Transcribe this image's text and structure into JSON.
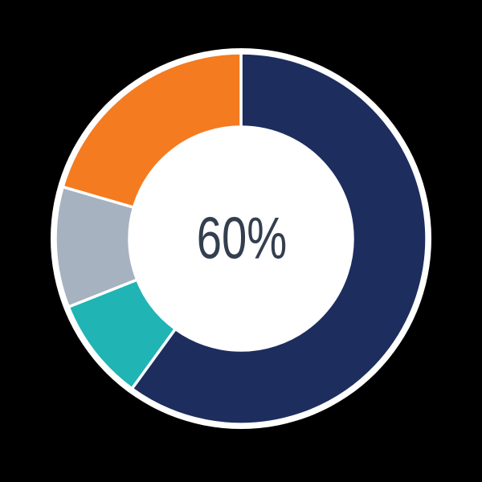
{
  "page": {
    "background_color": "#000000"
  },
  "chart_data": {
    "type": "pie",
    "variant": "donut",
    "center_label": "60%",
    "center_label_color": "#333F4F",
    "border_color": "#FFFFFF",
    "separator_color": "#FFFFFF",
    "start_angle_deg": 0,
    "direction": "clockwise",
    "legend": "none",
    "segments": [
      {
        "name": "navy",
        "color": "#1D2D5E",
        "value": 60
      },
      {
        "name": "teal",
        "color": "#20B4B4",
        "value": 9
      },
      {
        "name": "gray",
        "color": "#A7B2C0",
        "value": 10.5
      },
      {
        "name": "orange",
        "color": "#F47B20",
        "value": 20.5
      }
    ]
  }
}
